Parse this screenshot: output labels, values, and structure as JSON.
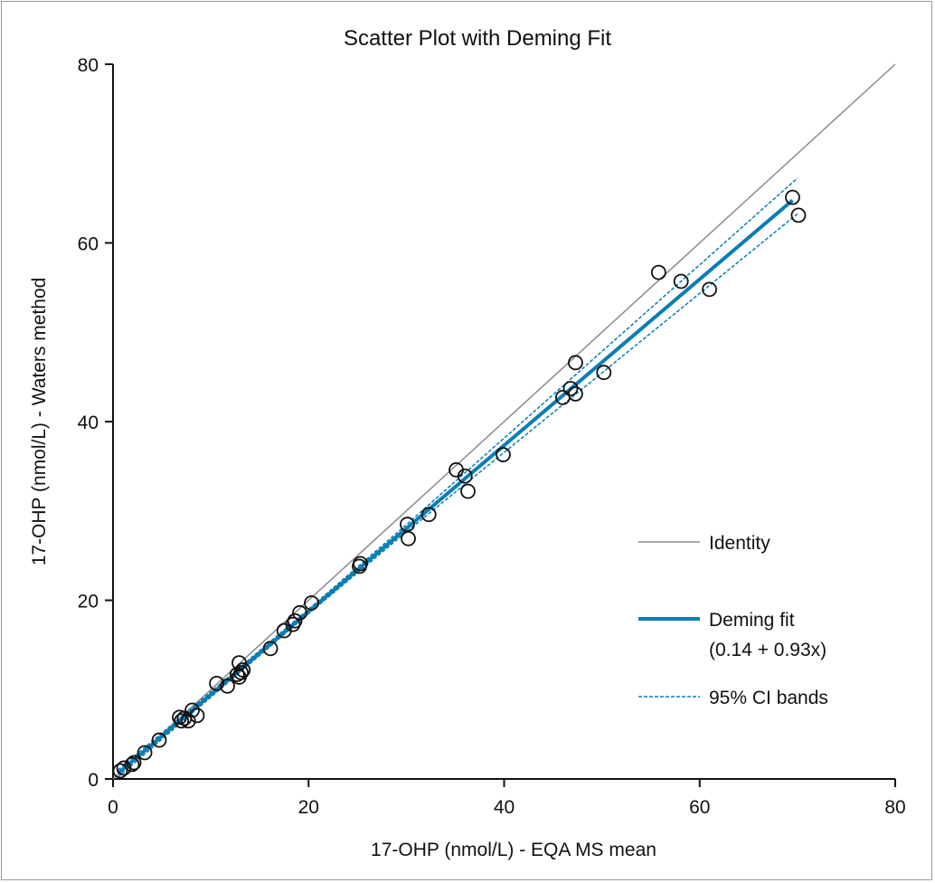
{
  "chart_data": {
    "type": "scatter",
    "title": "Scatter Plot with Deming Fit",
    "xlabel": "17-OHP (nmol/L) - EQA MS mean",
    "ylabel": "17-OHP (nmol/L) - Waters method",
    "xlim": [
      0,
      80
    ],
    "ylim": [
      0,
      80
    ],
    "xticks": [
      "0",
      "20",
      "40",
      "60",
      "80"
    ],
    "yticks": [
      "0",
      "20",
      "40",
      "60",
      "80"
    ],
    "grid": false,
    "legend_position": "right",
    "points": {
      "x": [
        0.74,
        1.11,
        1.94,
        2.13,
        3.24,
        4.72,
        6.8,
        7.0,
        7.3,
        7.7,
        8.1,
        8.6,
        10.6,
        11.7,
        12.7,
        12.9,
        12.9,
        13.1,
        13.3,
        16.1,
        17.5,
        18.4,
        18.6,
        19.1,
        20.3,
        25.2,
        25.3,
        30.1,
        30.2,
        32.3,
        35.1,
        36.0,
        36.3,
        39.9,
        46.0,
        47.3,
        46.8,
        47.3,
        50.2,
        55.8,
        58.1,
        61.0,
        69.5,
        70.1
      ],
      "y": [
        0.91,
        1.22,
        1.62,
        1.82,
        2.94,
        4.35,
        6.9,
        6.5,
        6.8,
        6.5,
        7.7,
        7.1,
        10.7,
        10.4,
        11.7,
        13.0,
        11.4,
        11.9,
        12.2,
        14.6,
        16.6,
        17.3,
        17.7,
        18.6,
        19.7,
        23.8,
        24.1,
        28.5,
        26.9,
        29.6,
        34.6,
        33.9,
        32.2,
        36.3,
        42.7,
        46.6,
        43.7,
        43.1,
        45.5,
        56.7,
        55.7,
        54.8,
        65.1,
        63.1
      ]
    },
    "identity": {
      "name": "Identity",
      "x": [
        0,
        80
      ],
      "y": [
        0,
        80
      ],
      "color": "#8c8c8c"
    },
    "fit": {
      "name": "Deming fit",
      "equation": "(0.14 + 0.93x)",
      "intercept": 0.14,
      "slope": 0.93,
      "x_range": [
        0.5,
        69.5
      ],
      "color": "#0a7db5"
    },
    "ci_bands": {
      "name": "95% CI bands",
      "color": "#0a7db5",
      "x": [
        0.5,
        10,
        20,
        30,
        40,
        50,
        60,
        70
      ],
      "lower": [
        0.2,
        9.15,
        18.5,
        27.65,
        36.55,
        45.45,
        54.35,
        63.25
      ],
      "upper": [
        1.0,
        9.75,
        19.0,
        28.45,
        38.15,
        47.85,
        57.55,
        67.25
      ]
    }
  }
}
